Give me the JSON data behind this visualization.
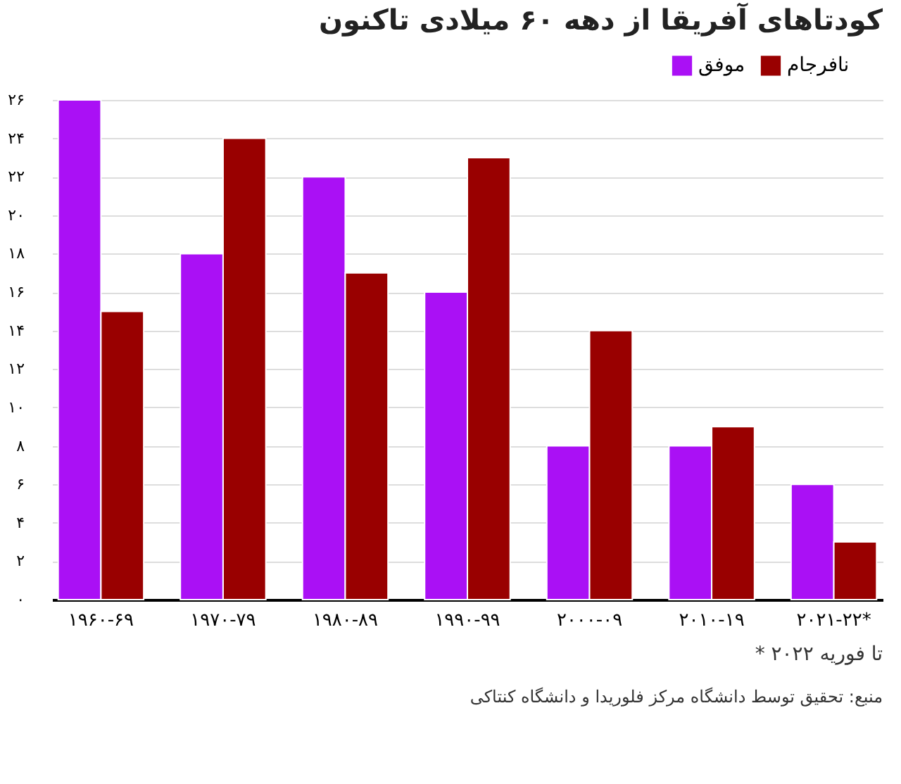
{
  "chart_data": {
    "type": "bar",
    "title": "کودتاهای آفریقا از دهه ۶۰ میلادی تاکنون",
    "categories": [
      "۱۹۶۰-۶۹",
      "۱۹۷۰-۷۹",
      "۱۹۸۰-۸۹",
      "۱۹۹۰-۹۹",
      "۲۰۰۰-۰۹",
      "۲۰۱۰-۱۹",
      "۲۰۲۱-۲۲*"
    ],
    "series": [
      {
        "name": "موفق",
        "color": "#aa10f5",
        "values": [
          26,
          18,
          22,
          16,
          8,
          8,
          6
        ]
      },
      {
        "name": "نافرجام",
        "color": "#990000",
        "values": [
          15,
          24,
          17,
          23,
          14,
          9,
          3
        ]
      }
    ],
    "ylim": [
      0,
      26
    ],
    "yticks": [
      {
        "value": 0,
        "label": "٠"
      },
      {
        "value": 2,
        "label": "۲"
      },
      {
        "value": 4,
        "label": "۴"
      },
      {
        "value": 6,
        "label": "۶"
      },
      {
        "value": 8,
        "label": "۸"
      },
      {
        "value": 10,
        "label": "۱۰"
      },
      {
        "value": 12,
        "label": "۱۲"
      },
      {
        "value": 14,
        "label": "۱۴"
      },
      {
        "value": 16,
        "label": "۱۶"
      },
      {
        "value": 18,
        "label": "۱۸"
      },
      {
        "value": 20,
        "label": "۲۰"
      },
      {
        "value": 22,
        "label": "۲۲"
      },
      {
        "value": 24,
        "label": "۲۴"
      },
      {
        "value": 26,
        "label": "۲۶"
      }
    ],
    "grid": "y",
    "legend": "top right",
    "annotations": [
      "* تا فوریه ۲۰۲۲",
      "منبع: تحقیق توسط دانشگاه مرکز فلوریدا و دانشگاه کنتاکی"
    ]
  }
}
